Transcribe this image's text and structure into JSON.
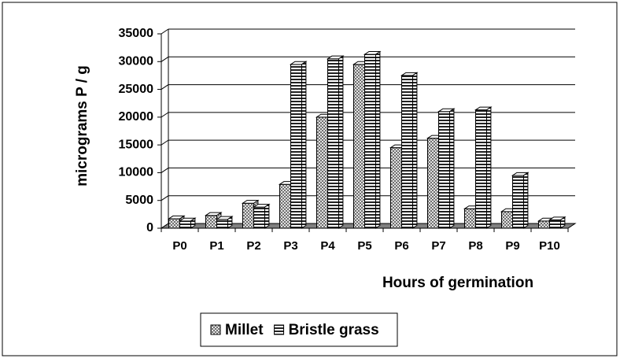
{
  "chart_data": {
    "type": "bar3d",
    "y_label": "micrograms P / g",
    "x_label": "Hours of germination",
    "categories": [
      "P0",
      "P1",
      "P2",
      "P3",
      "P4",
      "P5",
      "P6",
      "P7",
      "P8",
      "P9",
      "P10"
    ],
    "series": [
      {
        "name": "Millet",
        "color": "#c8c8c8",
        "values": [
          1700,
          2300,
          4500,
          7900,
          20000,
          29500,
          14500,
          16200,
          3500,
          3000,
          1300
        ]
      },
      {
        "name": "Bristle grass",
        "color": "#ffffff",
        "values": [
          1300,
          1600,
          3800,
          29500,
          30500,
          31300,
          27500,
          21000,
          21300,
          9500,
          1500
        ]
      }
    ],
    "ylim": [
      0,
      35000
    ],
    "yticks": [
      0,
      5000,
      10000,
      15000,
      20000,
      25000,
      30000,
      35000
    ],
    "grid": true,
    "legend": "bottom"
  }
}
